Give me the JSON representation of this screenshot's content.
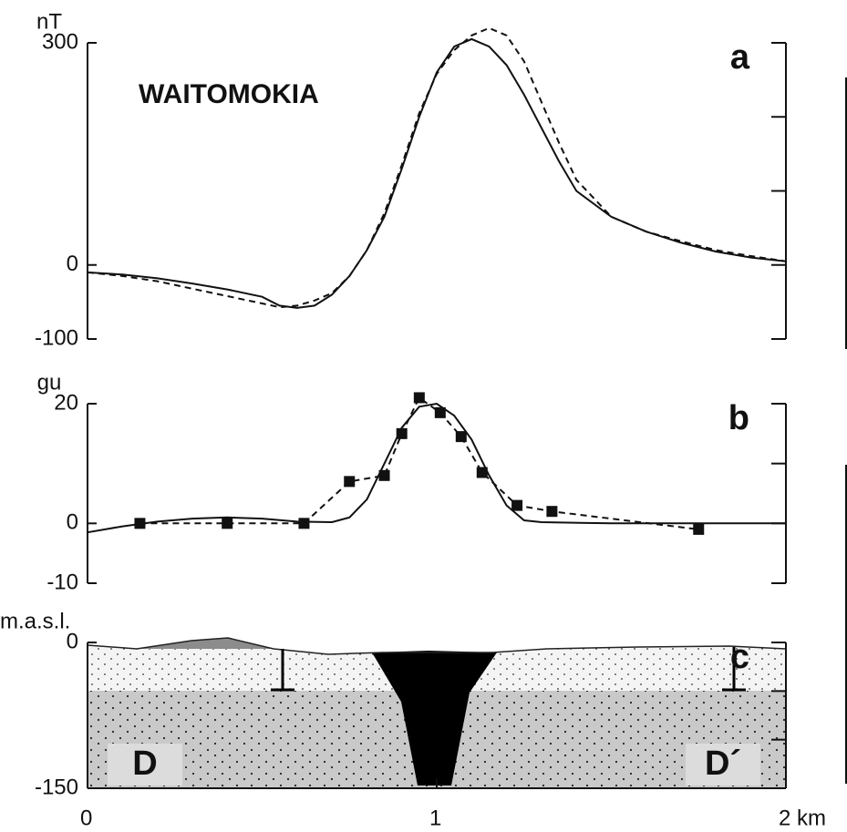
{
  "chart_data": [
    {
      "type": "line",
      "title": "WAITOMOKIA",
      "panel": "a",
      "ylabel": "nT",
      "xlim": [
        0,
        2
      ],
      "ylim": [
        -100,
        300
      ],
      "yticks": [
        -100,
        0,
        300
      ],
      "y_minor_ticks": [
        100,
        200
      ],
      "x": [
        0,
        0.1,
        0.2,
        0.3,
        0.4,
        0.5,
        0.55,
        0.6,
        0.65,
        0.7,
        0.75,
        0.8,
        0.85,
        0.9,
        0.95,
        1.0,
        1.05,
        1.1,
        1.15,
        1.2,
        1.25,
        1.3,
        1.35,
        1.4,
        1.5,
        1.6,
        1.7,
        1.8,
        1.9,
        2.0
      ],
      "series": [
        {
          "color": "#111111",
          "dash": false,
          "values": [
            -10,
            -13,
            -18,
            -25,
            -33,
            -43,
            -55,
            -58,
            -55,
            -40,
            -15,
            20,
            65,
            130,
            200,
            260,
            295,
            305,
            295,
            270,
            230,
            185,
            140,
            100,
            65,
            45,
            30,
            18,
            10,
            5
          ]
        },
        {
          "color": "#111111",
          "dash": true,
          "values": [
            -10,
            -15,
            -22,
            -32,
            -42,
            -52,
            -57,
            -55,
            -48,
            -38,
            -15,
            20,
            70,
            135,
            205,
            258,
            290,
            310,
            320,
            310,
            275,
            220,
            165,
            115,
            65,
            45,
            32,
            20,
            12,
            5
          ]
        }
      ]
    },
    {
      "type": "line",
      "panel": "b",
      "ylabel": "gu",
      "xlim": [
        0,
        2
      ],
      "ylim": [
        -10,
        20
      ],
      "yticks": [
        -10,
        0,
        20
      ],
      "y_minor_ticks": [
        10
      ],
      "x": [
        0,
        0.1,
        0.2,
        0.3,
        0.4,
        0.5,
        0.6,
        0.7,
        0.75,
        0.8,
        0.85,
        0.9,
        0.95,
        1.0,
        1.05,
        1.1,
        1.15,
        1.2,
        1.25,
        1.3,
        1.5,
        1.7,
        1.9,
        2.0
      ],
      "series": [
        {
          "color": "#111111",
          "dash": false,
          "values": [
            -1.5,
            -0.5,
            0.3,
            0.8,
            1,
            0.8,
            0.3,
            0.2,
            1,
            4,
            10,
            16,
            19.5,
            20,
            18,
            14,
            8,
            3,
            0.5,
            0.2,
            0,
            0,
            0,
            0
          ]
        },
        {
          "color": "#111111",
          "dash": true,
          "markers": true,
          "x": [
            0.15,
            0.4,
            0.62,
            0.75,
            0.85,
            0.9,
            0.95,
            1.01,
            1.07,
            1.13,
            1.23,
            1.33,
            1.75
          ],
          "values": [
            0,
            0,
            0,
            7,
            8,
            15,
            21,
            18.5,
            14.5,
            8.5,
            3,
            2,
            -1
          ]
        }
      ]
    },
    {
      "type": "section",
      "panel": "c",
      "ylabel": "m.a.s.l.",
      "labels": [
        "D",
        "D´"
      ],
      "xlim": [
        0,
        2
      ],
      "xticks": [
        0,
        1,
        {
          "value": 2,
          "label": "2 km"
        }
      ],
      "ylim": [
        -150,
        0
      ],
      "yticks": [
        -150,
        0
      ],
      "y_minor_ticks": [
        -100,
        -50
      ]
    }
  ]
}
